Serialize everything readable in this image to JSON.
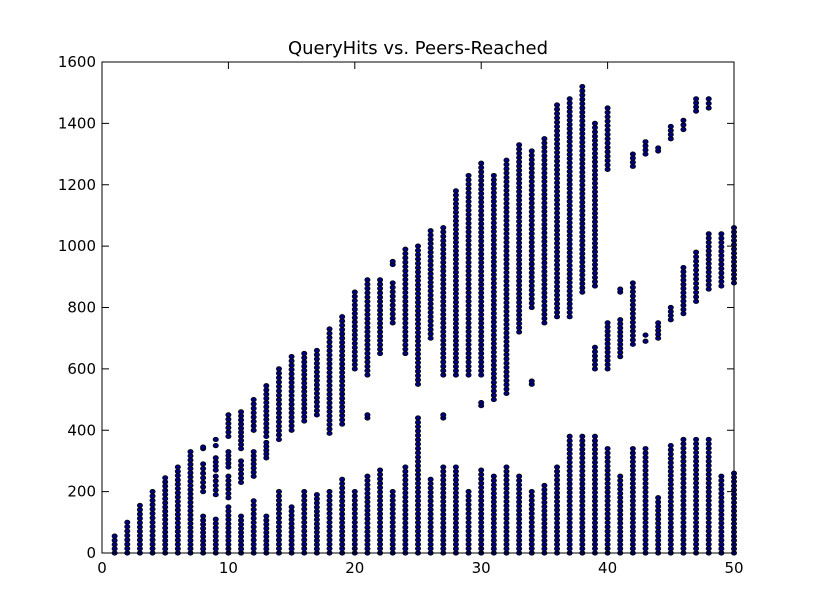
{
  "chart_data": {
    "type": "scatter",
    "title": "QueryHits vs. Peers-Reached",
    "xlabel": "",
    "ylabel": "",
    "xlim": [
      0,
      50
    ],
    "ylim": [
      0,
      1600
    ],
    "x_ticks": [
      0,
      10,
      20,
      30,
      40,
      50
    ],
    "y_ticks": [
      0,
      200,
      400,
      600,
      800,
      1000,
      1200,
      1400,
      1600
    ],
    "grid": false,
    "marker_color": "#00007f",
    "marker_edge_color": "#000000",
    "columns": [
      {
        "x": 1,
        "ranges": [
          [
            0,
            55
          ]
        ]
      },
      {
        "x": 2,
        "ranges": [
          [
            0,
            100
          ]
        ]
      },
      {
        "x": 3,
        "ranges": [
          [
            0,
            155
          ]
        ]
      },
      {
        "x": 4,
        "ranges": [
          [
            0,
            200
          ]
        ]
      },
      {
        "x": 5,
        "ranges": [
          [
            0,
            245
          ]
        ]
      },
      {
        "x": 6,
        "ranges": [
          [
            0,
            280
          ]
        ]
      },
      {
        "x": 7,
        "ranges": [
          [
            0,
            330
          ]
        ]
      },
      {
        "x": 8,
        "ranges": [
          [
            0,
            120
          ],
          [
            200,
            290
          ],
          [
            340,
            345
          ]
        ]
      },
      {
        "x": 9,
        "ranges": [
          [
            0,
            110
          ],
          [
            190,
            250
          ],
          [
            270,
            310
          ],
          [
            350,
            370
          ]
        ]
      },
      {
        "x": 10,
        "ranges": [
          [
            0,
            150
          ],
          [
            180,
            250
          ],
          [
            280,
            330
          ],
          [
            380,
            450
          ]
        ]
      },
      {
        "x": 11,
        "ranges": [
          [
            0,
            120
          ],
          [
            230,
            300
          ],
          [
            340,
            460
          ]
        ]
      },
      {
        "x": 12,
        "ranges": [
          [
            0,
            170
          ],
          [
            250,
            330
          ],
          [
            400,
            500
          ]
        ]
      },
      {
        "x": 13,
        "ranges": [
          [
            0,
            120
          ],
          [
            310,
            360
          ],
          [
            380,
            545
          ]
        ]
      },
      {
        "x": 14,
        "ranges": [
          [
            0,
            200
          ],
          [
            370,
            600
          ]
        ]
      },
      {
        "x": 15,
        "ranges": [
          [
            0,
            150
          ],
          [
            400,
            640
          ]
        ]
      },
      {
        "x": 16,
        "ranges": [
          [
            0,
            200
          ],
          [
            430,
            650
          ]
        ]
      },
      {
        "x": 17,
        "ranges": [
          [
            0,
            190
          ],
          [
            450,
            660
          ]
        ]
      },
      {
        "x": 18,
        "ranges": [
          [
            0,
            200
          ],
          [
            390,
            730
          ]
        ]
      },
      {
        "x": 19,
        "ranges": [
          [
            0,
            240
          ],
          [
            420,
            770
          ]
        ]
      },
      {
        "x": 20,
        "ranges": [
          [
            0,
            200
          ],
          [
            600,
            850
          ]
        ]
      },
      {
        "x": 21,
        "ranges": [
          [
            0,
            250
          ],
          [
            440,
            450
          ],
          [
            580,
            890
          ]
        ]
      },
      {
        "x": 22,
        "ranges": [
          [
            0,
            270
          ],
          [
            650,
            890
          ]
        ]
      },
      {
        "x": 23,
        "ranges": [
          [
            0,
            200
          ],
          [
            750,
            880
          ],
          [
            940,
            950
          ]
        ]
      },
      {
        "x": 24,
        "ranges": [
          [
            0,
            280
          ],
          [
            650,
            990
          ]
        ]
      },
      {
        "x": 25,
        "ranges": [
          [
            0,
            440
          ],
          [
            550,
            1000
          ]
        ]
      },
      {
        "x": 26,
        "ranges": [
          [
            0,
            240
          ],
          [
            700,
            1050
          ]
        ]
      },
      {
        "x": 27,
        "ranges": [
          [
            0,
            280
          ],
          [
            440,
            450
          ],
          [
            580,
            1060
          ]
        ]
      },
      {
        "x": 28,
        "ranges": [
          [
            0,
            280
          ],
          [
            580,
            1180
          ]
        ]
      },
      {
        "x": 29,
        "ranges": [
          [
            0,
            200
          ],
          [
            580,
            1230
          ]
        ]
      },
      {
        "x": 30,
        "ranges": [
          [
            0,
            270
          ],
          [
            480,
            490
          ],
          [
            580,
            1270
          ]
        ]
      },
      {
        "x": 31,
        "ranges": [
          [
            0,
            250
          ],
          [
            500,
            1230
          ]
        ]
      },
      {
        "x": 32,
        "ranges": [
          [
            0,
            280
          ],
          [
            520,
            1280
          ]
        ]
      },
      {
        "x": 33,
        "ranges": [
          [
            0,
            250
          ],
          [
            720,
            1330
          ]
        ]
      },
      {
        "x": 34,
        "ranges": [
          [
            0,
            200
          ],
          [
            550,
            560
          ],
          [
            800,
            1310
          ]
        ]
      },
      {
        "x": 35,
        "ranges": [
          [
            0,
            220
          ],
          [
            750,
            1350
          ]
        ]
      },
      {
        "x": 36,
        "ranges": [
          [
            0,
            280
          ],
          [
            770,
            1460
          ]
        ]
      },
      {
        "x": 37,
        "ranges": [
          [
            0,
            380
          ],
          [
            770,
            1480
          ]
        ]
      },
      {
        "x": 38,
        "ranges": [
          [
            0,
            380
          ],
          [
            850,
            1520
          ]
        ]
      },
      {
        "x": 39,
        "ranges": [
          [
            0,
            380
          ],
          [
            600,
            670
          ],
          [
            870,
            1400
          ]
        ]
      },
      {
        "x": 40,
        "ranges": [
          [
            0,
            340
          ],
          [
            600,
            750
          ],
          [
            1250,
            1450
          ]
        ]
      },
      {
        "x": 41,
        "ranges": [
          [
            0,
            250
          ],
          [
            640,
            760
          ],
          [
            850,
            860
          ]
        ]
      },
      {
        "x": 42,
        "ranges": [
          [
            0,
            340
          ],
          [
            680,
            880
          ],
          [
            1260,
            1300
          ]
        ]
      },
      {
        "x": 43,
        "ranges": [
          [
            0,
            340
          ],
          [
            690,
            710
          ],
          [
            1300,
            1340
          ]
        ]
      },
      {
        "x": 44,
        "ranges": [
          [
            0,
            180
          ],
          [
            700,
            750
          ],
          [
            1310,
            1320
          ]
        ]
      },
      {
        "x": 45,
        "ranges": [
          [
            0,
            350
          ],
          [
            760,
            800
          ],
          [
            1350,
            1390
          ]
        ]
      },
      {
        "x": 46,
        "ranges": [
          [
            0,
            370
          ],
          [
            780,
            930
          ],
          [
            1380,
            1410
          ]
        ]
      },
      {
        "x": 47,
        "ranges": [
          [
            0,
            370
          ],
          [
            820,
            980
          ],
          [
            1440,
            1480
          ]
        ]
      },
      {
        "x": 48,
        "ranges": [
          [
            0,
            370
          ],
          [
            860,
            1040
          ],
          [
            1450,
            1480
          ]
        ]
      },
      {
        "x": 49,
        "ranges": [
          [
            0,
            250
          ],
          [
            870,
            1040
          ]
        ]
      },
      {
        "x": 50,
        "ranges": [
          [
            0,
            260
          ],
          [
            880,
            1060
          ]
        ]
      }
    ]
  }
}
